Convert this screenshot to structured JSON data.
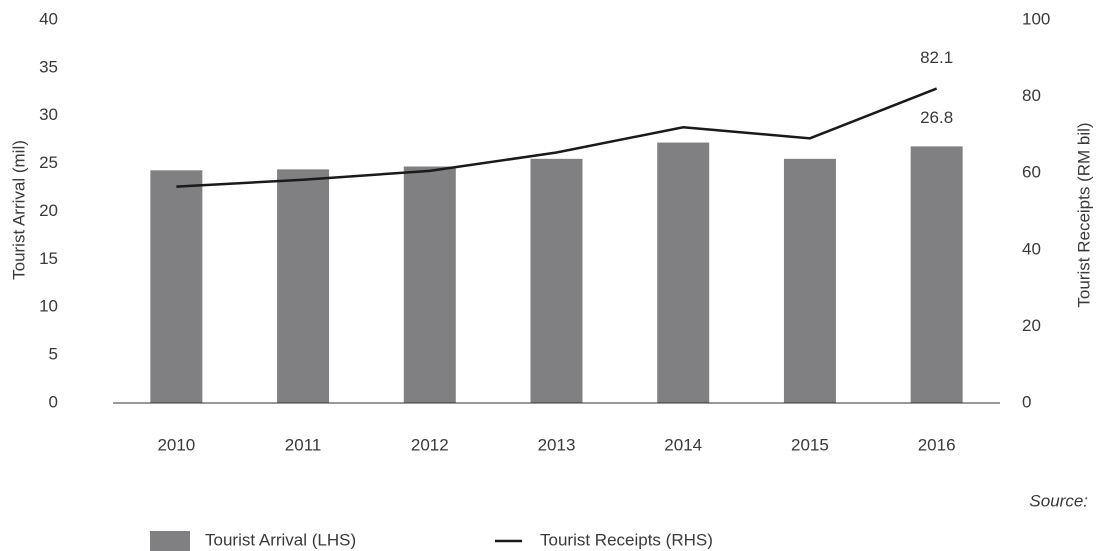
{
  "chart_data": {
    "type": "bar_line",
    "categories": [
      "2010",
      "2011",
      "2012",
      "2013",
      "2014",
      "2015",
      "2016"
    ],
    "series": [
      {
        "name": "Tourist Arrival (LHS)",
        "type": "bar",
        "color": "#808083",
        "values": [
          24.3,
          24.4,
          24.7,
          25.5,
          27.2,
          25.5,
          26.8
        ]
      },
      {
        "name": "Tourist Receipts (RHS)",
        "type": "line",
        "axis": "y2",
        "color": "#1a1a1a",
        "values": [
          56.5,
          58.3,
          60.6,
          65.4,
          72.0,
          69.1,
          82.1
        ]
      }
    ],
    "data_labels": "last",
    "ylabel": "Tourist Arrival (mil)",
    "y2label": "Tourist Receipts (RM bil)",
    "ylim": [
      0,
      40
    ],
    "yticks": [
      0,
      5,
      10,
      15,
      20,
      25,
      30,
      35,
      40
    ],
    "y2lim": [
      0,
      100
    ],
    "y2ticks": [
      0,
      20,
      40,
      60,
      80,
      100
    ],
    "source": "Source:",
    "legend": "bottom"
  }
}
